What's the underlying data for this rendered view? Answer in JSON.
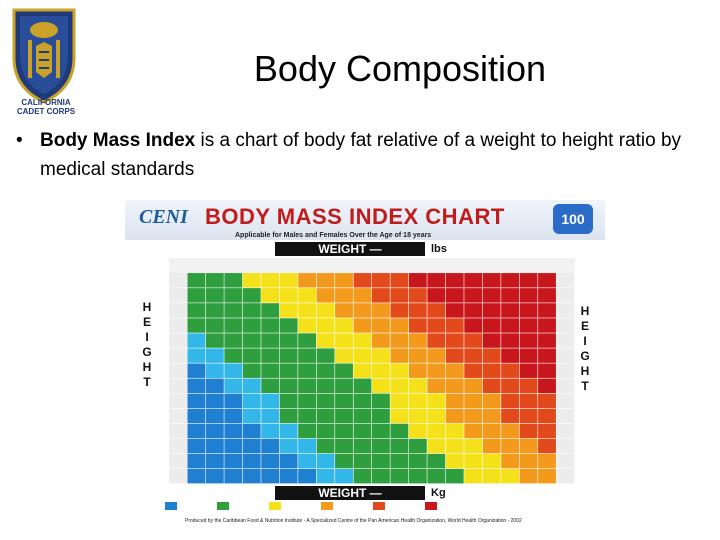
{
  "logo": {
    "caption_line1": "CALIFORNIA",
    "caption_line2": "CADET CORPS"
  },
  "slide": {
    "title": "Body Composition",
    "bullet_symbol": "•",
    "bullet_bold": "Body Mass Index",
    "bullet_rest": " is a chart of body fat  relative of a  weight to height ratio by medical standards"
  },
  "chart": {
    "brand_left": "CENI",
    "title": "BODY MASS INDEX CHART",
    "subtitle": "Applicable for Males and Females Over the Age of 18 years",
    "weight_label": "WEIGHT —",
    "unit_top": "lbs",
    "unit_bottom": "Kg",
    "height_word": "HEIGHT",
    "footer": "Produced by the Caribbean Food & Nutrition Institute - A Specialized Centre of the Pan American Health Organization, World Health Organization - 2002",
    "colors": {
      "underweight": "#1f7fd1",
      "light_blue": "#33b6e8",
      "normal": "#2e9e3e",
      "overweight": "#f4e11a",
      "obese1": "#f39a1d",
      "obese2": "#e24a1c",
      "obese3": "#c8161d"
    }
  }
}
